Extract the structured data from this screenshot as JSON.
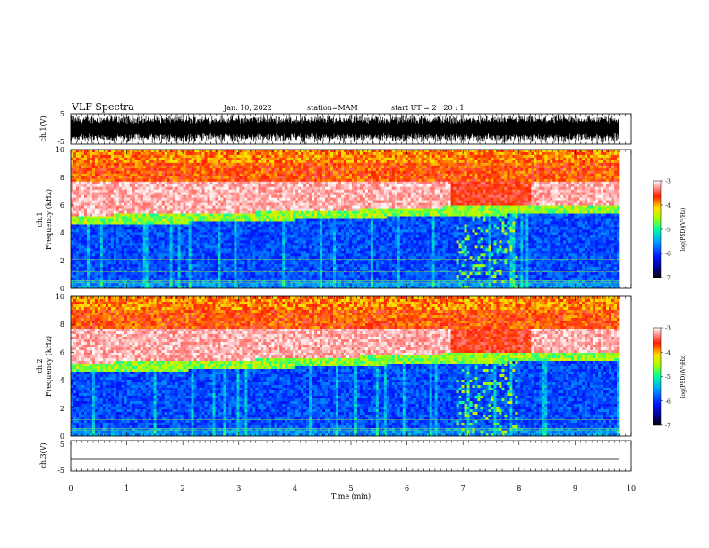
{
  "header": {
    "title": "VLF Spectra",
    "date": "Jan. 10, 2022",
    "station": "station=MAM",
    "start_ut": "start  UT =  2 : 20 : 1"
  },
  "chart_data": [
    {
      "type": "line",
      "panel": "waveform-ch1",
      "ylabel": "ch.1(V)",
      "yticks": [
        "5",
        "-5"
      ],
      "ylim": [
        -5,
        5
      ],
      "xlim": [
        0,
        10
      ],
      "description": "dense broadband noise, amplitude near full scale"
    },
    {
      "type": "heatmap",
      "panel": "spectrogram-ch1",
      "ylabel": "ch.1\nFrequency (kHz)",
      "ylabel_line1": "ch.1",
      "ylabel_line2": "Frequency (kHz)",
      "ylim": [
        0,
        10
      ],
      "yticks": [
        "0",
        "2",
        "4",
        "6",
        "8",
        "10"
      ],
      "xlim": [
        0,
        10
      ],
      "colorbar": {
        "label": "log(PSD)(V²/Hz)",
        "range": [
          -7,
          -3
        ],
        "ticks": [
          "-3",
          "-4",
          "-5",
          "-6",
          "-7"
        ]
      },
      "cutoff_kHz": [
        [
          0,
          4.9
        ],
        [
          1,
          4.95
        ],
        [
          2,
          5.0
        ],
        [
          3,
          5.1
        ],
        [
          4,
          5.2
        ],
        [
          5,
          5.3
        ],
        [
          6,
          5.45
        ],
        [
          7,
          5.55
        ],
        [
          8,
          5.6
        ],
        [
          9,
          5.65
        ],
        [
          9.8,
          5.65
        ]
      ]
    },
    {
      "type": "heatmap",
      "panel": "spectrogram-ch2",
      "ylabel": "ch.2\nFrequency (kHz)",
      "ylabel_line1": "ch.2",
      "ylabel_line2": "Frequency (kHz)",
      "ylim": [
        0,
        10
      ],
      "yticks": [
        "0",
        "2",
        "4",
        "6",
        "8",
        "10"
      ],
      "xlim": [
        0,
        10
      ],
      "colorbar": {
        "label": "log(PSD)(V²/Hz)",
        "range": [
          -7,
          -3
        ],
        "ticks": [
          "-3",
          "-4",
          "-5",
          "-6",
          "-7"
        ]
      },
      "cutoff_kHz": [
        [
          0,
          4.9
        ],
        [
          1,
          4.95
        ],
        [
          2,
          5.0
        ],
        [
          3,
          5.1
        ],
        [
          4,
          5.2
        ],
        [
          5,
          5.3
        ],
        [
          6,
          5.45
        ],
        [
          7,
          5.55
        ],
        [
          8,
          5.6
        ],
        [
          9,
          5.65
        ],
        [
          9.8,
          5.65
        ]
      ]
    },
    {
      "type": "line",
      "panel": "waveform-ch3",
      "ylabel": "ch.3(V)",
      "yticks": [
        "5",
        "-5"
      ],
      "ylim": [
        -5,
        5
      ],
      "xlim": [
        0,
        10
      ],
      "description": "flat line at about -2 V"
    }
  ],
  "x_axis": {
    "label": "Time  (min)",
    "ticks": [
      "0",
      "1",
      "2",
      "3",
      "4",
      "5",
      "6",
      "7",
      "8",
      "9",
      "10"
    ]
  }
}
